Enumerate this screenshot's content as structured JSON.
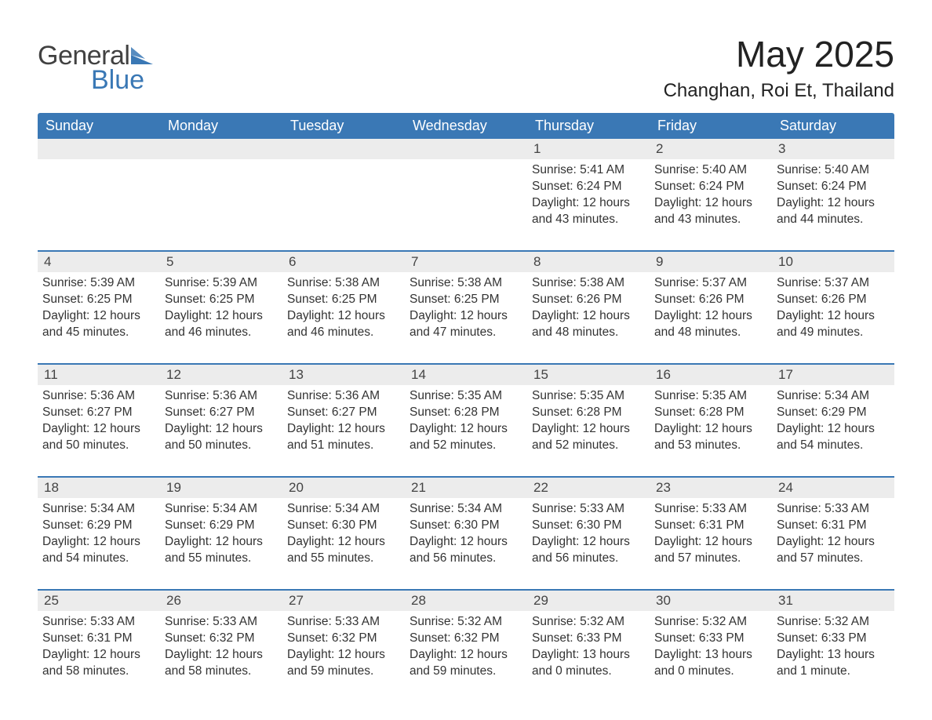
{
  "logo": {
    "text_main": "General",
    "text_sub": "Blue",
    "main_color": "#414141",
    "sub_color": "#3a78b5"
  },
  "title": "May 2025",
  "location": "Changhan, Roi Et, Thailand",
  "colors": {
    "header_bg": "#3a78b5",
    "header_text": "#ffffff",
    "daynum_bg": "#ececec",
    "body_text": "#333333",
    "divider": "#3a78b5",
    "page_bg": "#ffffff"
  },
  "fonts": {
    "title_fontsize": 46,
    "location_fontsize": 24,
    "weekday_fontsize": 18,
    "daynum_fontsize": 17,
    "body_fontsize": 15.5,
    "logo_fontsize": 34
  },
  "weekdays": [
    "Sunday",
    "Monday",
    "Tuesday",
    "Wednesday",
    "Thursday",
    "Friday",
    "Saturday"
  ],
  "weeks": [
    [
      {
        "day": "",
        "sunrise": "",
        "sunset": "",
        "daylight": "",
        "empty": true
      },
      {
        "day": "",
        "sunrise": "",
        "sunset": "",
        "daylight": "",
        "empty": true
      },
      {
        "day": "",
        "sunrise": "",
        "sunset": "",
        "daylight": "",
        "empty": true
      },
      {
        "day": "",
        "sunrise": "",
        "sunset": "",
        "daylight": "",
        "empty": true
      },
      {
        "day": "1",
        "sunrise": "Sunrise: 5:41 AM",
        "sunset": "Sunset: 6:24 PM",
        "daylight": "Daylight: 12 hours and 43 minutes."
      },
      {
        "day": "2",
        "sunrise": "Sunrise: 5:40 AM",
        "sunset": "Sunset: 6:24 PM",
        "daylight": "Daylight: 12 hours and 43 minutes."
      },
      {
        "day": "3",
        "sunrise": "Sunrise: 5:40 AM",
        "sunset": "Sunset: 6:24 PM",
        "daylight": "Daylight: 12 hours and 44 minutes."
      }
    ],
    [
      {
        "day": "4",
        "sunrise": "Sunrise: 5:39 AM",
        "sunset": "Sunset: 6:25 PM",
        "daylight": "Daylight: 12 hours and 45 minutes."
      },
      {
        "day": "5",
        "sunrise": "Sunrise: 5:39 AM",
        "sunset": "Sunset: 6:25 PM",
        "daylight": "Daylight: 12 hours and 46 minutes."
      },
      {
        "day": "6",
        "sunrise": "Sunrise: 5:38 AM",
        "sunset": "Sunset: 6:25 PM",
        "daylight": "Daylight: 12 hours and 46 minutes."
      },
      {
        "day": "7",
        "sunrise": "Sunrise: 5:38 AM",
        "sunset": "Sunset: 6:25 PM",
        "daylight": "Daylight: 12 hours and 47 minutes."
      },
      {
        "day": "8",
        "sunrise": "Sunrise: 5:38 AM",
        "sunset": "Sunset: 6:26 PM",
        "daylight": "Daylight: 12 hours and 48 minutes."
      },
      {
        "day": "9",
        "sunrise": "Sunrise: 5:37 AM",
        "sunset": "Sunset: 6:26 PM",
        "daylight": "Daylight: 12 hours and 48 minutes."
      },
      {
        "day": "10",
        "sunrise": "Sunrise: 5:37 AM",
        "sunset": "Sunset: 6:26 PM",
        "daylight": "Daylight: 12 hours and 49 minutes."
      }
    ],
    [
      {
        "day": "11",
        "sunrise": "Sunrise: 5:36 AM",
        "sunset": "Sunset: 6:27 PM",
        "daylight": "Daylight: 12 hours and 50 minutes."
      },
      {
        "day": "12",
        "sunrise": "Sunrise: 5:36 AM",
        "sunset": "Sunset: 6:27 PM",
        "daylight": "Daylight: 12 hours and 50 minutes."
      },
      {
        "day": "13",
        "sunrise": "Sunrise: 5:36 AM",
        "sunset": "Sunset: 6:27 PM",
        "daylight": "Daylight: 12 hours and 51 minutes."
      },
      {
        "day": "14",
        "sunrise": "Sunrise: 5:35 AM",
        "sunset": "Sunset: 6:28 PM",
        "daylight": "Daylight: 12 hours and 52 minutes."
      },
      {
        "day": "15",
        "sunrise": "Sunrise: 5:35 AM",
        "sunset": "Sunset: 6:28 PM",
        "daylight": "Daylight: 12 hours and 52 minutes."
      },
      {
        "day": "16",
        "sunrise": "Sunrise: 5:35 AM",
        "sunset": "Sunset: 6:28 PM",
        "daylight": "Daylight: 12 hours and 53 minutes."
      },
      {
        "day": "17",
        "sunrise": "Sunrise: 5:34 AM",
        "sunset": "Sunset: 6:29 PM",
        "daylight": "Daylight: 12 hours and 54 minutes."
      }
    ],
    [
      {
        "day": "18",
        "sunrise": "Sunrise: 5:34 AM",
        "sunset": "Sunset: 6:29 PM",
        "daylight": "Daylight: 12 hours and 54 minutes."
      },
      {
        "day": "19",
        "sunrise": "Sunrise: 5:34 AM",
        "sunset": "Sunset: 6:29 PM",
        "daylight": "Daylight: 12 hours and 55 minutes."
      },
      {
        "day": "20",
        "sunrise": "Sunrise: 5:34 AM",
        "sunset": "Sunset: 6:30 PM",
        "daylight": "Daylight: 12 hours and 55 minutes."
      },
      {
        "day": "21",
        "sunrise": "Sunrise: 5:34 AM",
        "sunset": "Sunset: 6:30 PM",
        "daylight": "Daylight: 12 hours and 56 minutes."
      },
      {
        "day": "22",
        "sunrise": "Sunrise: 5:33 AM",
        "sunset": "Sunset: 6:30 PM",
        "daylight": "Daylight: 12 hours and 56 minutes."
      },
      {
        "day": "23",
        "sunrise": "Sunrise: 5:33 AM",
        "sunset": "Sunset: 6:31 PM",
        "daylight": "Daylight: 12 hours and 57 minutes."
      },
      {
        "day": "24",
        "sunrise": "Sunrise: 5:33 AM",
        "sunset": "Sunset: 6:31 PM",
        "daylight": "Daylight: 12 hours and 57 minutes."
      }
    ],
    [
      {
        "day": "25",
        "sunrise": "Sunrise: 5:33 AM",
        "sunset": "Sunset: 6:31 PM",
        "daylight": "Daylight: 12 hours and 58 minutes."
      },
      {
        "day": "26",
        "sunrise": "Sunrise: 5:33 AM",
        "sunset": "Sunset: 6:32 PM",
        "daylight": "Daylight: 12 hours and 58 minutes."
      },
      {
        "day": "27",
        "sunrise": "Sunrise: 5:33 AM",
        "sunset": "Sunset: 6:32 PM",
        "daylight": "Daylight: 12 hours and 59 minutes."
      },
      {
        "day": "28",
        "sunrise": "Sunrise: 5:32 AM",
        "sunset": "Sunset: 6:32 PM",
        "daylight": "Daylight: 12 hours and 59 minutes."
      },
      {
        "day": "29",
        "sunrise": "Sunrise: 5:32 AM",
        "sunset": "Sunset: 6:33 PM",
        "daylight": "Daylight: 13 hours and 0 minutes."
      },
      {
        "day": "30",
        "sunrise": "Sunrise: 5:32 AM",
        "sunset": "Sunset: 6:33 PM",
        "daylight": "Daylight: 13 hours and 0 minutes."
      },
      {
        "day": "31",
        "sunrise": "Sunrise: 5:32 AM",
        "sunset": "Sunset: 6:33 PM",
        "daylight": "Daylight: 13 hours and 1 minute."
      }
    ]
  ]
}
